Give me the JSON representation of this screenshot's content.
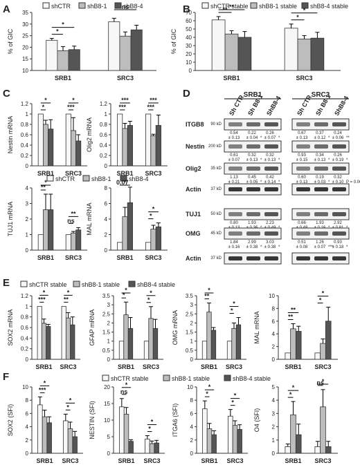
{
  "colors": {
    "light": "#f7f7f7",
    "mid": "#bdbdbd",
    "dark": "#555555",
    "axis": "#333333"
  },
  "panel_letters": [
    "A",
    "B",
    "C",
    "D",
    "E",
    "F"
  ],
  "legends": {
    "A": [
      "shCTR",
      "shB8-1",
      "shB8-4"
    ],
    "B": [
      "shCTR stable",
      "shB8-1 stable",
      "shB8-4 stable"
    ],
    "C2": [
      "shCTR",
      "shB8-1",
      "shB8-4"
    ],
    "E": [
      "shCTR stable",
      "shB8-1 stable",
      "shB8-4 stable"
    ],
    "F": [
      "shCTR stable",
      "shB8-1 stable",
      "shB8-4 stable"
    ]
  },
  "chart_data": [
    {
      "id": "A",
      "type": "bar",
      "categories": [
        "SRB1",
        "SRC3"
      ],
      "ylabel": "% of GIC",
      "ylim": [
        10,
        35
      ],
      "yticks": [
        10,
        15,
        20,
        25,
        30,
        35
      ],
      "series": [
        {
          "name": "shCTR",
          "values": [
            23,
            31
          ],
          "err": [
            0.8,
            1.5
          ]
        },
        {
          "name": "shB8-1",
          "values": [
            18.5,
            24.8
          ],
          "err": [
            1.8,
            1.8
          ]
        },
        {
          "name": "shB8-4",
          "values": [
            19,
            27.5
          ],
          "err": [
            1.5,
            2
          ]
        }
      ],
      "annotations": [
        "*",
        "*",
        "ns"
      ]
    },
    {
      "id": "B",
      "type": "bar",
      "categories": [
        "SRB1",
        "SRC3"
      ],
      "ylabel": "% of GIC",
      "ylim": [
        0,
        70
      ],
      "yticks": [
        0,
        10,
        20,
        30,
        40,
        50,
        60,
        70
      ],
      "series": [
        {
          "name": "shCTR stable",
          "values": [
            61,
            51
          ],
          "err": [
            4,
            5
          ]
        },
        {
          "name": "shB8-1 stable",
          "values": [
            44,
            38
          ],
          "err": [
            4,
            4
          ]
        },
        {
          "name": "shB8-4 stable",
          "values": [
            40,
            39
          ],
          "err": [
            7,
            7
          ]
        }
      ],
      "annotations": [
        "**",
        "**",
        "*",
        "*"
      ]
    },
    {
      "id": "C1",
      "type": "bar",
      "categories": [
        "SRB1",
        "SRC3"
      ],
      "ylabel": "Nestin mRNA",
      "ylim": [
        0,
        1.2
      ],
      "yticks": [
        0,
        0.2,
        0.4,
        0.6,
        0.8,
        1,
        1.2
      ],
      "series": [
        {
          "name": "shCTR",
          "values": [
            1,
            1
          ],
          "err": [
            0,
            0
          ]
        },
        {
          "name": "shB8-1",
          "values": [
            0.8,
            0.68
          ],
          "err": [
            0.08,
            0.25
          ]
        },
        {
          "name": "shB8-4",
          "values": [
            0.71,
            0.48
          ],
          "err": [
            0.18,
            0.12
          ]
        }
      ],
      "annotations": [
        "*",
        "*",
        "***",
        "*"
      ]
    },
    {
      "id": "C2",
      "type": "bar",
      "categories": [
        "SRB1",
        "SRC3"
      ],
      "ylabel": "Olig2 mRNA",
      "ylim": [
        0,
        1.2
      ],
      "yticks": [
        0,
        0.2,
        0.4,
        0.6,
        0.8,
        1,
        1.2
      ],
      "series": [
        {
          "name": "shCTR",
          "values": [
            1,
            1
          ],
          "err": [
            0,
            0
          ]
        },
        {
          "name": "shB8-1",
          "values": [
            0.72,
            0.58
          ],
          "err": [
            0.1,
            0.03
          ]
        },
        {
          "name": "shB8-4",
          "values": [
            0.78,
            0.78
          ],
          "err": [
            0.08,
            0.2
          ]
        }
      ],
      "annotations": [
        "***",
        "***",
        "***",
        "***"
      ]
    },
    {
      "id": "C3",
      "type": "bar",
      "categories": [
        "SRB1",
        "SRC3"
      ],
      "ylabel": "TUJ1 mRNA",
      "ylim": [
        0,
        4
      ],
      "yticks": [
        0,
        1,
        2,
        3,
        4
      ],
      "series": [
        {
          "name": "shCTR",
          "values": [
            1,
            1
          ],
          "err": [
            0,
            0
          ]
        },
        {
          "name": "shB8-1",
          "values": [
            2.6,
            1.1
          ],
          "err": [
            1,
            0.1
          ]
        },
        {
          "name": "shB8-4",
          "values": [
            2.6,
            1.3
          ],
          "err": [
            1,
            0.15
          ]
        }
      ],
      "annotations": [
        "**",
        "*",
        "ns",
        "**"
      ]
    },
    {
      "id": "C4",
      "type": "bar",
      "categories": [
        "SRB1",
        "SRC3"
      ],
      "ylabel": "MAL mRNA",
      "ylim": [
        0,
        8
      ],
      "yticks": [
        0,
        2,
        4,
        6,
        8
      ],
      "series": [
        {
          "name": "shCTR",
          "values": [
            1,
            1
          ],
          "err": [
            0,
            0
          ]
        },
        {
          "name": "shB8-1",
          "values": [
            4.3,
            2.7
          ],
          "err": [
            1.2,
            0.5
          ]
        },
        {
          "name": "shB8-4",
          "values": [
            6.1,
            3
          ],
          "err": [
            2,
            0.5
          ]
        }
      ],
      "annotations": [
        "0.07",
        "*",
        "*",
        "*"
      ]
    },
    {
      "id": "E1",
      "type": "bar",
      "categories": [
        "SRB1",
        "SRC3"
      ],
      "ylabel": "SOX2 mRNA",
      "ylim": [
        0,
        1.2
      ],
      "yticks": [
        0,
        0.2,
        0.4,
        0.6,
        0.8,
        1,
        1.2
      ],
      "series": [
        {
          "name": "shCTR stable",
          "values": [
            1,
            1
          ],
          "err": [
            0,
            0
          ]
        },
        {
          "name": "shB8-1 stable",
          "values": [
            0.68,
            0.78
          ],
          "err": [
            0.08,
            0.1
          ]
        },
        {
          "name": "shB8-4 stable",
          "values": [
            0.62,
            0.65
          ],
          "err": [
            0.04,
            0.15
          ]
        }
      ],
      "annotations": [
        "***",
        "*",
        "**",
        "*"
      ]
    },
    {
      "id": "E2",
      "type": "bar",
      "categories": [
        "SRB1",
        "SRC3"
      ],
      "ylabel": "GFAP mRNA",
      "ylim": [
        0,
        3.5
      ],
      "yticks": [
        0,
        0.5,
        1,
        1.5,
        2,
        2.5,
        3,
        3.5
      ],
      "series": [
        {
          "name": "shCTR stable",
          "values": [
            1,
            1
          ],
          "err": [
            0,
            0
          ]
        },
        {
          "name": "shB8-1 stable",
          "values": [
            2.45,
            2.25
          ],
          "err": [
            0.7,
            0.65
          ]
        },
        {
          "name": "shB8-4 stable",
          "values": [
            1.7,
            1.7
          ],
          "err": [
            0.6,
            0.5
          ]
        }
      ],
      "annotations": [
        "*",
        "*",
        "*",
        "*"
      ]
    },
    {
      "id": "E3",
      "type": "bar",
      "categories": [
        "SRB1",
        "SRC3"
      ],
      "ylabel": "OMG mRNA",
      "ylim": [
        0,
        3.5
      ],
      "yticks": [
        0,
        0.5,
        1,
        1.5,
        2,
        2.5,
        3,
        3.5
      ],
      "series": [
        {
          "name": "shCTR stable",
          "values": [
            1,
            1
          ],
          "err": [
            0,
            0
          ]
        },
        {
          "name": "shB8-1 stable",
          "values": [
            2.6,
            1.7
          ],
          "err": [
            0.5,
            0.3
          ]
        },
        {
          "name": "shB8-4 stable",
          "values": [
            1.6,
            1.9
          ],
          "err": [
            0.15,
            0.4
          ]
        }
      ],
      "annotations": [
        "**",
        "*",
        "*",
        "*"
      ]
    },
    {
      "id": "E4",
      "type": "bar",
      "categories": [
        "SRB1",
        "SRC3"
      ],
      "ylabel": "MAL mRNA",
      "ylim": [
        0,
        10
      ],
      "yticks": [
        0,
        2,
        4,
        6,
        8,
        10
      ],
      "series": [
        {
          "name": "shCTR stable",
          "values": [
            1,
            1
          ],
          "err": [
            0,
            0
          ]
        },
        {
          "name": "shB8-1 stable",
          "values": [
            4.8,
            2.5
          ],
          "err": [
            0.8,
            0.7
          ]
        },
        {
          "name": "shB8-4 stable",
          "values": [
            4.4,
            6
          ],
          "err": [
            0.8,
            2.2
          ]
        }
      ],
      "annotations": [
        "**",
        "**",
        "*",
        "*"
      ]
    },
    {
      "id": "F1",
      "type": "bar",
      "categories": [
        "SRB1",
        "SRC3"
      ],
      "ylabel": "SOX2 (SFI)",
      "ylim": [
        0,
        10
      ],
      "yticks": [
        0,
        2,
        4,
        6,
        8,
        10
      ],
      "series": [
        {
          "name": "shCTR stable",
          "values": [
            7.3,
            4.9
          ],
          "err": [
            1.2,
            1
          ]
        },
        {
          "name": "shB8-1 stable",
          "values": [
            5.5,
            3.7
          ],
          "err": [
            1,
            1
          ]
        },
        {
          "name": "shB8-4 stable",
          "values": [
            4.6,
            2.5
          ],
          "err": [
            0.9,
            0.8
          ]
        }
      ],
      "annotations": [
        "***",
        "*",
        "*",
        "*"
      ]
    },
    {
      "id": "F2",
      "type": "bar",
      "categories": [
        "SRB1",
        "SRC3"
      ],
      "ylabel": "NESTIN (SFI)",
      "ylim": [
        0,
        20
      ],
      "yticks": [
        0,
        5,
        10,
        15,
        20
      ],
      "series": [
        {
          "name": "shCTR stable",
          "values": [
            14,
            4.3
          ],
          "err": [
            2.5,
            1
          ]
        },
        {
          "name": "shB8-1 stable",
          "values": [
            11.8,
            2.9
          ],
          "err": [
            2,
            0.8
          ]
        },
        {
          "name": "shB8-4 stable",
          "values": [
            3.6,
            3.1
          ],
          "err": [
            0.5,
            0.8
          ]
        }
      ],
      "annotations": [
        "ns",
        "*",
        "*",
        "*"
      ]
    },
    {
      "id": "F3",
      "type": "bar",
      "categories": [
        "SRB1",
        "SRC3"
      ],
      "ylabel": "ITGA6 (SFI)",
      "ylim": [
        0,
        10
      ],
      "yticks": [
        0,
        2,
        4,
        6,
        8,
        10
      ],
      "series": [
        {
          "name": "shCTR stable",
          "values": [
            6.7,
            5.6
          ],
          "err": [
            1.2,
            1
          ]
        },
        {
          "name": "shB8-1 stable",
          "values": [
            3.7,
            4.2
          ],
          "err": [
            0.8,
            0.7
          ]
        },
        {
          "name": "shB8-4 stable",
          "values": [
            2.8,
            3.6
          ],
          "err": [
            0.6,
            0.7
          ]
        }
      ],
      "annotations": [
        "*",
        "*",
        "*",
        "*"
      ]
    },
    {
      "id": "F4",
      "type": "bar",
      "categories": [
        "SRB1",
        "SRC3"
      ],
      "ylabel": "O4 (SFI)",
      "ylim": [
        0,
        5
      ],
      "yticks": [
        0,
        1,
        2,
        3,
        4,
        5
      ],
      "series": [
        {
          "name": "shCTR stable",
          "values": [
            0.5,
            0.5
          ],
          "err": [
            0.2,
            0.4
          ]
        },
        {
          "name": "shB8-1 stable",
          "values": [
            2.9,
            3.5
          ],
          "err": [
            1,
            1.3
          ]
        },
        {
          "name": "shB8-4 stable",
          "values": [
            1.4,
            0.5
          ],
          "err": [
            0.8,
            0.4
          ]
        }
      ],
      "annotations": [
        "*",
        "*",
        "ns",
        "*"
      ]
    }
  ],
  "blot": {
    "groups": [
      "SRB1",
      "SRC3"
    ],
    "lanes": [
      "Sh CTR",
      "Sh B8-1",
      "ShB8-4"
    ],
    "rows": [
      {
        "protein": "ITGB8",
        "kd": "90 kD",
        "q1": [
          "0.54",
          "0.22",
          "0.26"
        ],
        "e1": [
          "± 0.13",
          "± 0.04",
          "± 0.07"
        ],
        "s1": [
          "",
          "*",
          "*"
        ],
        "q2": [
          "0.67",
          "0.37",
          "0.24"
        ],
        "e2": [
          "± 0.13",
          "± 0.12",
          "± 0.06"
        ],
        "s2": [
          "",
          "*",
          "**"
        ]
      },
      {
        "protein": "Nestin",
        "kd": "200 kD",
        "q1": [
          "0.61",
          "0.32",
          "0.32"
        ],
        "e1": [
          "± 0.07",
          "± 0.13",
          "± 0.13"
        ],
        "s1": [
          "",
          "*",
          "*"
        ],
        "q2": [
          "0.93",
          "0.34",
          "0.26"
        ],
        "e2": [
          "± 0.15",
          "± 0.13",
          "± 0.19"
        ],
        "s2": [
          "",
          "*",
          "*"
        ]
      },
      {
        "protein": "Olig2",
        "kd": "35 kD",
        "q1": [
          "1.13",
          "0.45",
          "0.42"
        ],
        "e1": [
          "± 0.21",
          "± 0.05",
          "± 0.14"
        ],
        "s1": [
          "",
          "*",
          "*"
        ],
        "q2": [
          "0.60",
          "0.19",
          "0.32"
        ],
        "e2": [
          "± 0.13",
          "± 0.03",
          "± 0.10"
        ],
        "s2": [
          "",
          "*",
          "P = 0.06"
        ]
      },
      {
        "protein": "Actin",
        "kd": "37 kD"
      },
      {
        "protein": "TUJ1",
        "kd": "50 kD",
        "q1": [
          "0.80",
          "1.93",
          "2.23"
        ],
        "e1": [
          "± 0.13",
          "± 0.36",
          "± 0.49"
        ],
        "s1": [
          "",
          "*",
          "*"
        ],
        "q2": [
          "0.66",
          "1.93",
          "2.92"
        ],
        "e2": [
          "± 0.48",
          "± 0.16",
          "± 0.81"
        ],
        "s2": [
          "",
          "*",
          "*"
        ]
      },
      {
        "protein": "OMG",
        "kd": "45 kD",
        "q1": [
          "1.84",
          "2.99",
          "3.03"
        ],
        "e1": [
          "± 0.16",
          "± 0.38",
          "± 0.38"
        ],
        "s1": [
          "",
          "*",
          "*"
        ],
        "q2": [
          "0.51",
          "1.26",
          "0.93"
        ],
        "e2": [
          "± 0.08",
          "± 0.07",
          "± 0.18"
        ],
        "s2": [
          "",
          "***",
          "*"
        ]
      },
      {
        "protein": "Actin",
        "kd": "37 kD"
      }
    ]
  }
}
